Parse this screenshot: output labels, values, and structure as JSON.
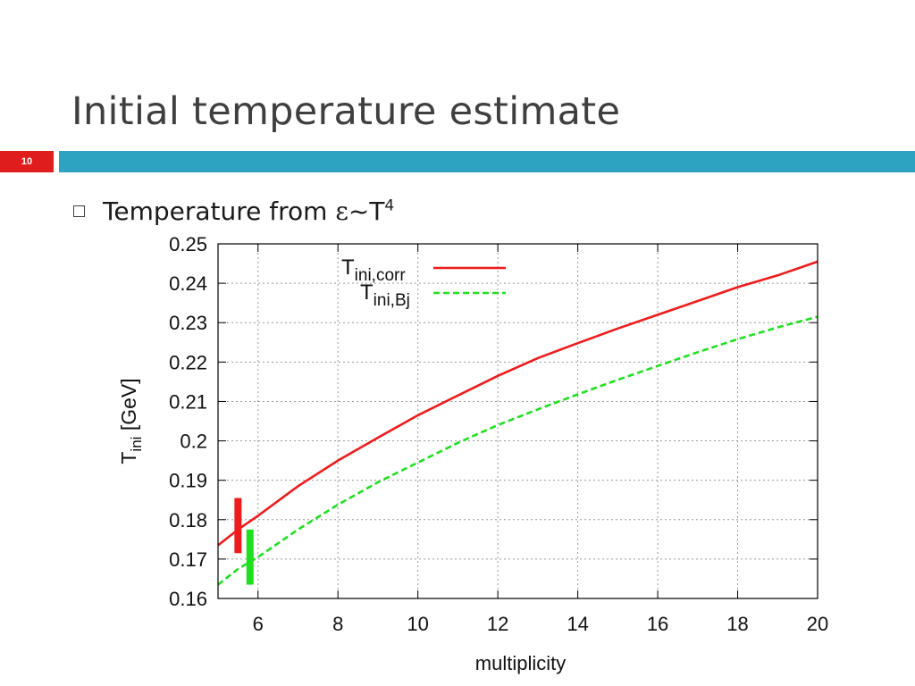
{
  "slide": {
    "title": "Initial temperature estimate",
    "page_number": "10",
    "bullet": {
      "prefix": "Temperature from ",
      "symbol": "ε",
      "tilde": "~",
      "base": "T",
      "exponent": "4"
    }
  },
  "colors": {
    "title_text": "#3f3f3f",
    "page_number_bg": "#e01d1d",
    "title_bar": "#2ea3c1",
    "series_corr": "#ee1c1c",
    "series_bj": "#1fe01f"
  },
  "chart_data": {
    "type": "line",
    "title": "",
    "xlabel": "multiplicity",
    "ylabel": "T",
    "ylabel_sub": "ini",
    "ylabel_unit": " [GeV]",
    "xlim": [
      5,
      20
    ],
    "ylim": [
      0.16,
      0.25
    ],
    "x_ticks": [
      6,
      8,
      10,
      12,
      14,
      16,
      18,
      20
    ],
    "x_tick_labels": [
      "6",
      "8",
      "10",
      "12",
      "14",
      "16",
      "18",
      "20"
    ],
    "y_ticks": [
      0.16,
      0.17,
      0.18,
      0.19,
      0.2,
      0.21,
      0.22,
      0.23,
      0.24,
      0.25
    ],
    "y_tick_labels": [
      "0.16",
      "0.17",
      "0.18",
      "0.19",
      "0.2",
      "0.21",
      "0.22",
      "0.23",
      "0.24",
      "0.25"
    ],
    "grid": true,
    "legend_position": "top-left",
    "series": [
      {
        "name": "T",
        "name_sub": "ini,corr",
        "style": "solid",
        "color": "#ee1c1c",
        "x": [
          5,
          5.5,
          6,
          7,
          8,
          9,
          10,
          11,
          12,
          13,
          14,
          15,
          16,
          17,
          18,
          19,
          20
        ],
        "y": [
          0.1735,
          0.1775,
          0.181,
          0.1885,
          0.195,
          0.2008,
          0.2065,
          0.2115,
          0.2165,
          0.221,
          0.2248,
          0.2285,
          0.232,
          0.2355,
          0.239,
          0.242,
          0.2455
        ]
      },
      {
        "name": "T",
        "name_sub": "ini,Bj",
        "style": "dashed",
        "color": "#1fe01f",
        "x": [
          5,
          5.5,
          6,
          7,
          8,
          9,
          10,
          11,
          12,
          13,
          14,
          15,
          16,
          17,
          18,
          19,
          20
        ],
        "y": [
          0.1635,
          0.1675,
          0.1705,
          0.1775,
          0.1838,
          0.1895,
          0.1945,
          0.1995,
          0.204,
          0.208,
          0.2118,
          0.2155,
          0.219,
          0.2225,
          0.2258,
          0.2288,
          0.2315
        ]
      }
    ],
    "error_bars": [
      {
        "x": 5.5,
        "y_low": 0.1715,
        "y_high": 0.1855,
        "color": "#ee1c1c"
      },
      {
        "x": 5.8,
        "y_low": 0.1635,
        "y_high": 0.1775,
        "color": "#1fe01f"
      }
    ]
  }
}
